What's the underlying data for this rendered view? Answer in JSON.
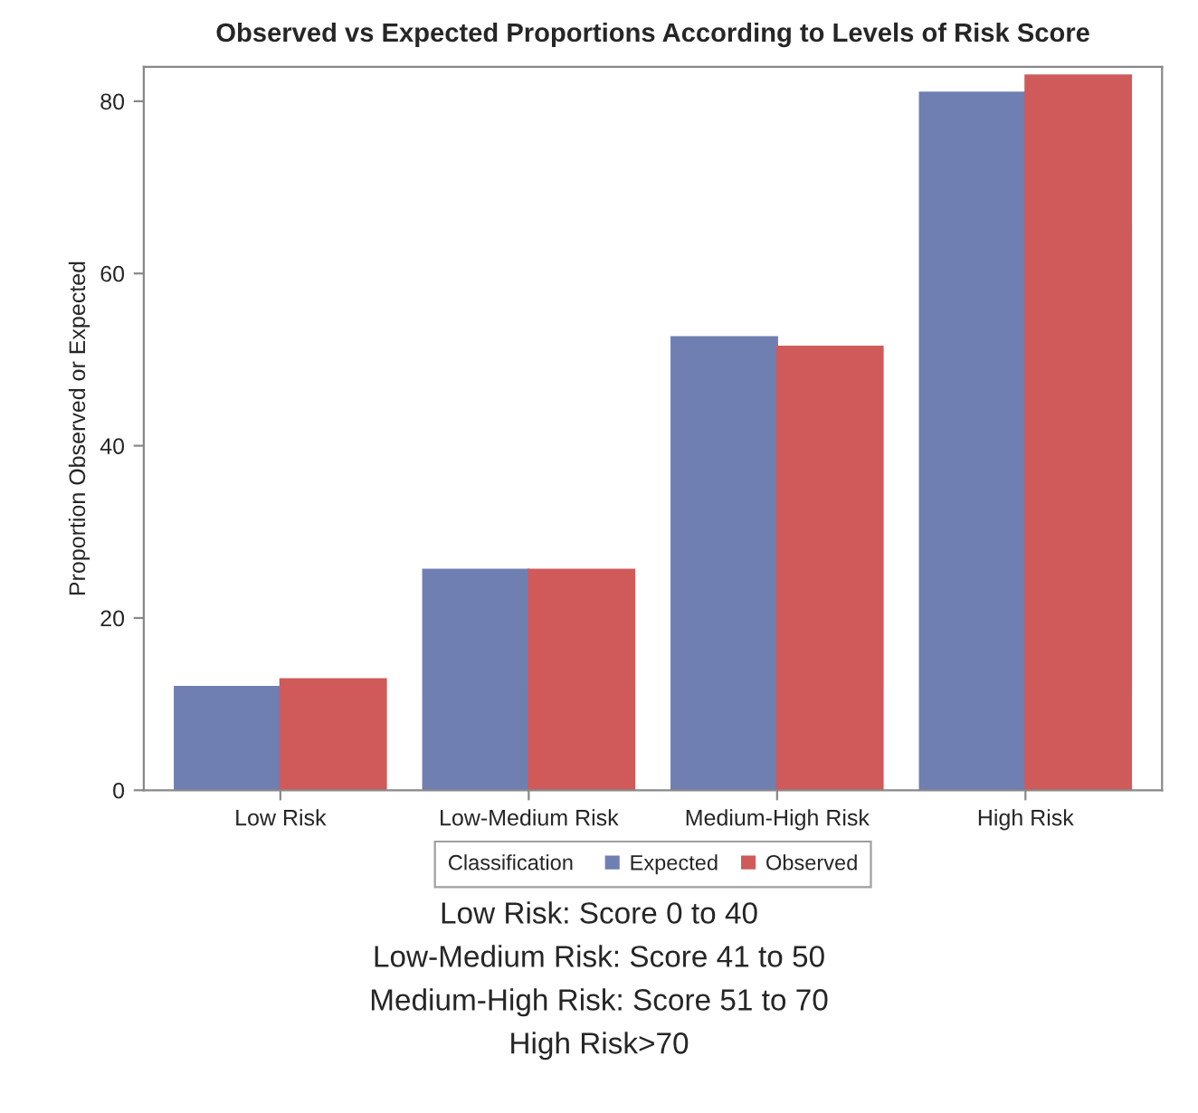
{
  "chart_data": {
    "type": "bar",
    "title": "Observed vs Expected Proportions According to Levels of Risk Score",
    "ylabel": "Proportion Observed or Expected",
    "categories": [
      "Low Risk",
      "Low-Medium Risk",
      "Medium-High Risk",
      "High Risk"
    ],
    "series": [
      {
        "name": "Expected",
        "color": "#6f7fb2",
        "values": [
          12.0,
          25.6,
          52.6,
          81.0
        ]
      },
      {
        "name": "Observed",
        "color": "#d05a5a",
        "values": [
          12.9,
          25.6,
          51.5,
          83.0
        ]
      }
    ],
    "ylim": [
      0,
      84
    ],
    "yticks": [
      0,
      20,
      40,
      60,
      80
    ],
    "grid": false,
    "legend": "bottom",
    "legend_title": "Classification",
    "annotations": [
      "Low Risk: Score 0 to 40",
      "Low-Medium Risk: Score 41 to 50",
      "Medium-High Risk: Score 51 to 70",
      "High Risk>70"
    ]
  }
}
